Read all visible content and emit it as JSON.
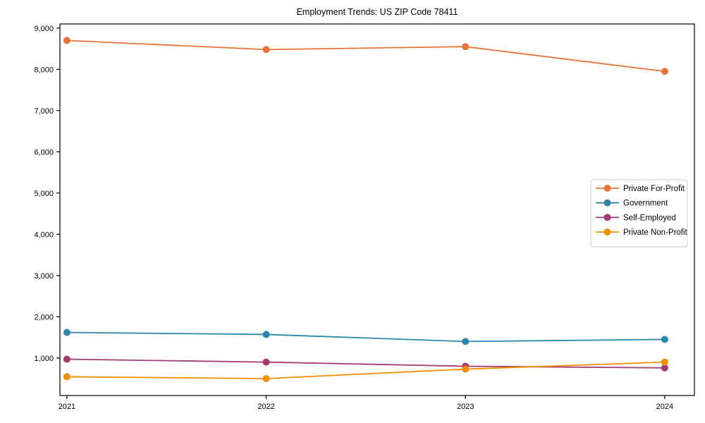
{
  "chart_data": {
    "type": "line",
    "title": "Employment Trends: US ZIP Code 78411",
    "xlabel": "",
    "ylabel": "",
    "x": [
      2021,
      2022,
      2023,
      2024
    ],
    "x_tick_labels": [
      "2021",
      "2022",
      "2023",
      "2024"
    ],
    "y_ticks": [
      1000,
      2000,
      3000,
      4000,
      5000,
      6000,
      7000,
      8000,
      9000
    ],
    "y_tick_labels": [
      "1,000",
      "2,000",
      "3,000",
      "4,000",
      "5,000",
      "6,000",
      "7,000",
      "8,000",
      "9,000"
    ],
    "xlim": [
      2020.965,
      2024.149
    ],
    "ylim": [
      90,
      9100
    ],
    "grid": false,
    "marker": "circle",
    "legend_position": "center right",
    "background_color": "#ffffff",
    "axis_color": "#000000",
    "legend_border_color": "#cccccc",
    "series": [
      {
        "name": "Private For-Profit",
        "color": "#E8743B",
        "values": [
          8700,
          8480,
          8550,
          7950
        ]
      },
      {
        "name": "Government",
        "color": "#2E86AB",
        "values": [
          1620,
          1570,
          1400,
          1450
        ]
      },
      {
        "name": "Self-Employed",
        "color": "#A23B72",
        "values": [
          970,
          900,
          800,
          760
        ]
      },
      {
        "name": "Private Non-Profit",
        "color": "#F18F01",
        "values": [
          545,
          500,
          730,
          900
        ]
      }
    ]
  }
}
